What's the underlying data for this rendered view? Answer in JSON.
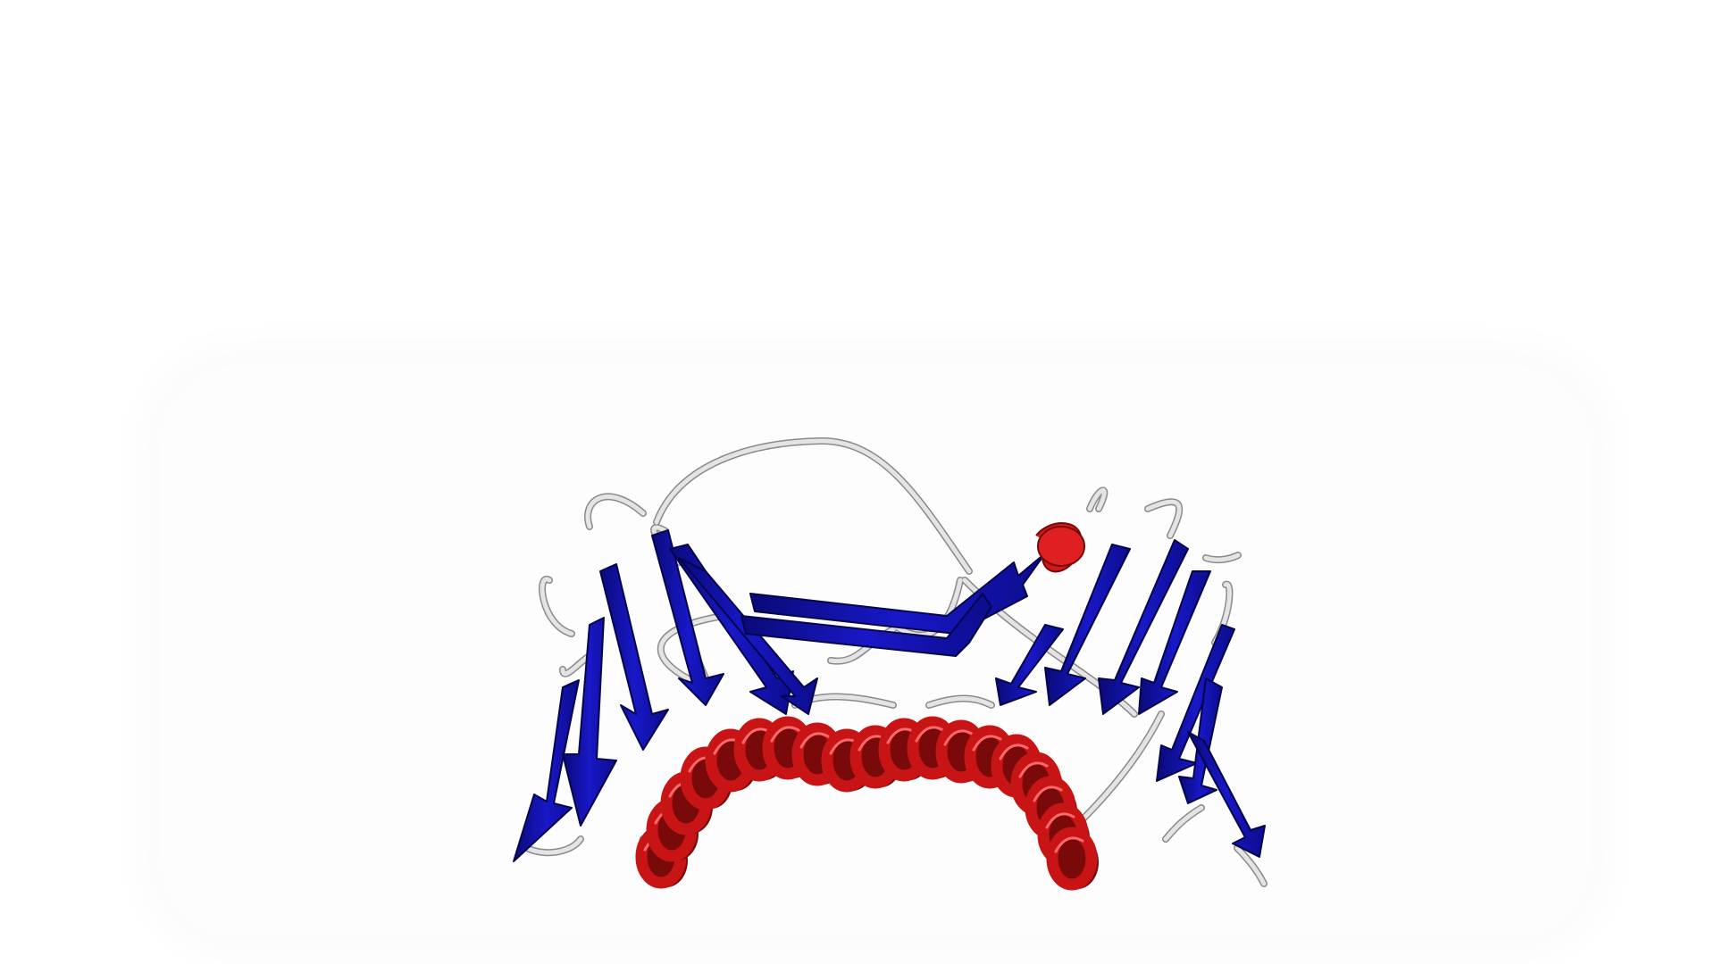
{
  "scene": {
    "subject": "protein-cartoon",
    "background_color": "#ffffff",
    "colors": {
      "beta_sheet": "#1414b4",
      "beta_sheet_dark": "#0a0a78",
      "helix": "#c81414",
      "helix_dark": "#7a0a0a",
      "loop": "#d8d8d8",
      "loop_edge": "#8a8a8a"
    }
  }
}
